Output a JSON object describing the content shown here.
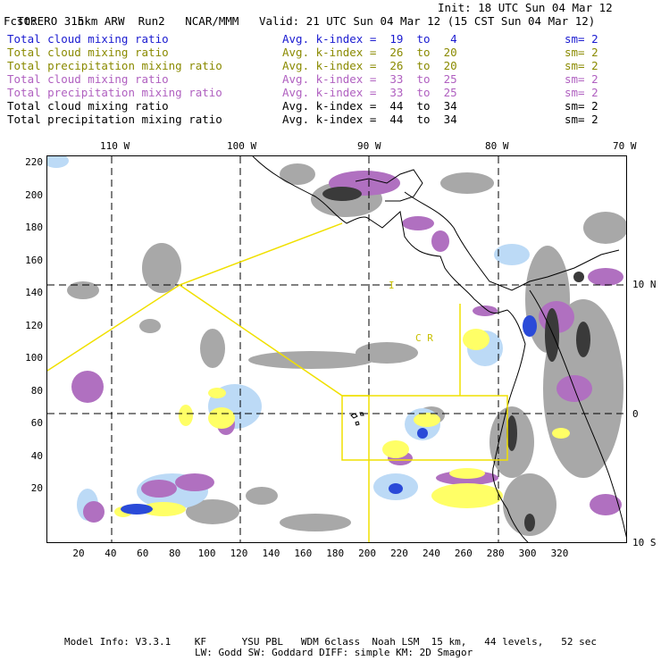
{
  "header": {
    "model": "TORERO",
    "resolution": "15km ARW",
    "run": "Run2",
    "center": "NCAR/MMM",
    "init": "Init: 18 UTC Sun 04 Mar 12",
    "fcst_label": "Fcst:",
    "fcst_value": "3 h",
    "valid": "Valid: 21 UTC Sun 04 Mar 12 (15 CST Sun 04 Mar 12)"
  },
  "legend_rows": [
    {
      "field": "Total cloud mixing ratio",
      "kindex": "Avg. k-index =  19  to   4",
      "sm": "sm= 2",
      "color": "#1a1ad0"
    },
    {
      "field": "Total cloud mixing ratio",
      "kindex": "Avg. k-index =  26  to  20",
      "sm": "sm= 2",
      "color": "#8a8a00"
    },
    {
      "field": "Total precipitation mixing ratio",
      "kindex": "Avg. k-index =  26  to  20",
      "sm": "sm= 2",
      "color": "#8a8a00"
    },
    {
      "field": "Total cloud mixing ratio",
      "kindex": "Avg. k-index =  33  to  25",
      "sm": "sm= 2",
      "color": "#b060c0"
    },
    {
      "field": "Total precipitation mixing ratio",
      "kindex": "Avg. k-index =  33  to  25",
      "sm": "sm= 2",
      "color": "#b060c0"
    },
    {
      "field": "Total cloud mixing ratio",
      "kindex": "Avg. k-index =  44  to  34",
      "sm": "sm= 2",
      "color": "#000000"
    },
    {
      "field": "Total precipitation mixing ratio",
      "kindex": "Avg. k-index =  44  to  34",
      "sm": "sm= 2",
      "color": "#000000"
    }
  ],
  "map": {
    "top_ticks": [
      "110 W",
      "100 W",
      "90 W",
      "80 W",
      "70 W"
    ],
    "left_ticks": [
      "220",
      "200",
      "180",
      "160",
      "140",
      "120",
      "100",
      "80",
      "60",
      "40",
      "20"
    ],
    "bottom_ticks": [
      "20",
      "40",
      "60",
      "80",
      "100",
      "120",
      "140",
      "160",
      "180",
      "200",
      "220",
      "240",
      "260",
      "280",
      "300",
      "320"
    ],
    "right_ticks": [
      "10 N",
      "0",
      "10 S"
    ],
    "region_labels": {
      "panama": "I",
      "costa_rica": "C R"
    },
    "colors": {
      "gray_cloud": "#a8a8a8",
      "dark_core": "#3a3a3a",
      "purple": "#b070c0",
      "yellow": "#ffff66",
      "blue": "#2a4ad8",
      "light_blue": "#bcdaf6",
      "domain_line": "#f0e000"
    }
  },
  "footer": {
    "line1": "Model Info: V3.3.1    KF      YSU PBL   WDM 6class  Noah LSM  15 km,   44 levels,   52 sec",
    "line2": "LW: Godd SW: Goddard DIFF: simple KM: 2D Smagor"
  }
}
